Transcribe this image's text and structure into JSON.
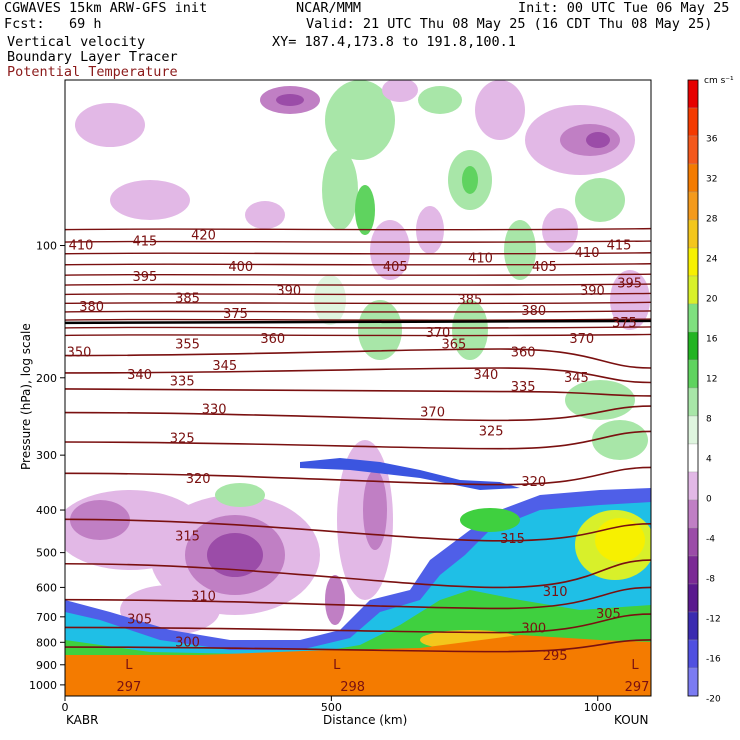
{
  "header": {
    "model": "CGWAVES 15km ARW-GFS init",
    "forecast": "Fcst:   69 h",
    "org": "NCAR/MMM",
    "init": "Init: 00 UTC Tue 06 May 25",
    "valid": "Valid: 21 UTC Thu 08 May 25 (16 CDT Thu 08 May 25)",
    "xy": "XY= 187.4,173.8 to 191.8,100.1",
    "field1": "Vertical velocity",
    "field2": "Boundary Layer Tracer",
    "field3": "Potential Temperature"
  },
  "colors": {
    "theta": "#7a1010",
    "colorbar": [
      "#7b7bf2",
      "#5050e0",
      "#3b2bb0",
      "#5a1a8e",
      "#7b2a95",
      "#9b4ca8",
      "#c07fc4",
      "#e2b8e6",
      "#ffffff",
      "#dff5df",
      "#a8e6a8",
      "#5fd35f",
      "#22b422",
      "#7fe07f",
      "#d8f02a",
      "#f7f000",
      "#f3c61c",
      "#f49a1c",
      "#f47b00",
      "#f4581c",
      "#f43a00",
      "#e60000"
    ]
  },
  "chart_data": {
    "type": "heatmap",
    "title": "",
    "xlabel": "Distance (km)",
    "ylabel": "Pressure (hPa), log scale",
    "x_ticks": [
      "0",
      "500",
      "1000"
    ],
    "x_range": [
      0,
      1100
    ],
    "y_ticks": [
      "100",
      "200",
      "300",
      "400",
      "500",
      "600",
      "700",
      "800",
      "900",
      "1000"
    ],
    "y_scale": "log",
    "endpoint_left": "KABR",
    "endpoint_right": "KOUN",
    "colorbar": {
      "unit": "cm s⁻¹",
      "ticks": [
        "36",
        "32",
        "28",
        "24",
        "20",
        "16",
        "12",
        "8",
        "4",
        "0",
        "-4",
        "-8",
        "-12",
        "-16",
        "-20"
      ]
    },
    "theta_contours": [
      {
        "label": "410",
        "x": 30,
        "p": 100
      },
      {
        "label": "415",
        "x": 150,
        "p": 98
      },
      {
        "label": "420",
        "x": 260,
        "p": 95
      },
      {
        "label": "395",
        "x": 150,
        "p": 118
      },
      {
        "label": "400",
        "x": 330,
        "p": 112
      },
      {
        "label": "405",
        "x": 620,
        "p": 112
      },
      {
        "label": "410",
        "x": 780,
        "p": 107
      },
      {
        "label": "405",
        "x": 900,
        "p": 112
      },
      {
        "label": "410",
        "x": 980,
        "p": 104
      },
      {
        "label": "415",
        "x": 1040,
        "p": 100
      },
      {
        "label": "380",
        "x": 50,
        "p": 138
      },
      {
        "label": "385",
        "x": 230,
        "p": 132
      },
      {
        "label": "390",
        "x": 420,
        "p": 127
      },
      {
        "label": "385",
        "x": 760,
        "p": 133
      },
      {
        "label": "380",
        "x": 880,
        "p": 141
      },
      {
        "label": "390",
        "x": 990,
        "p": 127
      },
      {
        "label": "395",
        "x": 1060,
        "p": 122
      },
      {
        "label": "375",
        "x": 320,
        "p": 143
      },
      {
        "label": "370",
        "x": 700,
        "p": 158
      },
      {
        "label": "370",
        "x": 970,
        "p": 163
      },
      {
        "label": "375",
        "x": 1050,
        "p": 150
      },
      {
        "label": "350",
        "x": 10,
        "p": 175
      },
      {
        "label": "355",
        "x": 230,
        "p": 168
      },
      {
        "label": "360",
        "x": 390,
        "p": 163
      },
      {
        "label": "365",
        "x": 730,
        "p": 168
      },
      {
        "label": "360",
        "x": 860,
        "p": 175
      },
      {
        "label": "340",
        "x": 140,
        "p": 197
      },
      {
        "label": "335",
        "x": 220,
        "p": 204
      },
      {
        "label": "345",
        "x": 300,
        "p": 188
      },
      {
        "label": "340",
        "x": 790,
        "p": 197
      },
      {
        "label": "335",
        "x": 860,
        "p": 210
      },
      {
        "label": "345",
        "x": 960,
        "p": 200
      },
      {
        "label": "330",
        "x": 280,
        "p": 236
      },
      {
        "label": "370",
        "x": 690,
        "p": 240
      },
      {
        "label": "325",
        "x": 220,
        "p": 275
      },
      {
        "label": "325",
        "x": 800,
        "p": 265
      },
      {
        "label": "320",
        "x": 250,
        "p": 340
      },
      {
        "label": "320",
        "x": 880,
        "p": 345
      },
      {
        "label": "315",
        "x": 230,
        "p": 460
      },
      {
        "label": "315",
        "x": 840,
        "p": 465
      },
      {
        "label": "310",
        "x": 260,
        "p": 630
      },
      {
        "label": "310",
        "x": 920,
        "p": 615
      },
      {
        "label": "305",
        "x": 140,
        "p": 710
      },
      {
        "label": "305",
        "x": 1020,
        "p": 690
      },
      {
        "label": "300",
        "x": 230,
        "p": 800
      },
      {
        "label": "300",
        "x": 880,
        "p": 745
      },
      {
        "label": "295",
        "x": 920,
        "p": 860
      },
      {
        "label": "297",
        "x": 120,
        "p": 1010
      },
      {
        "label": "298",
        "x": 540,
        "p": 1010
      },
      {
        "label": "297",
        "x": 1080,
        "p": 1010
      },
      {
        "label": "L",
        "x": 120,
        "p": 900
      },
      {
        "label": "L",
        "x": 510,
        "p": 900
      },
      {
        "label": "L",
        "x": 1070,
        "p": 900
      }
    ],
    "fill_regions": [
      {
        "name": "boundary-layer-orange",
        "value": 28
      },
      {
        "name": "mixed-layer-blue",
        "value": -16
      },
      {
        "name": "updraft-green",
        "value": 8
      },
      {
        "name": "downdraft-purple",
        "value": -8
      }
    ]
  }
}
